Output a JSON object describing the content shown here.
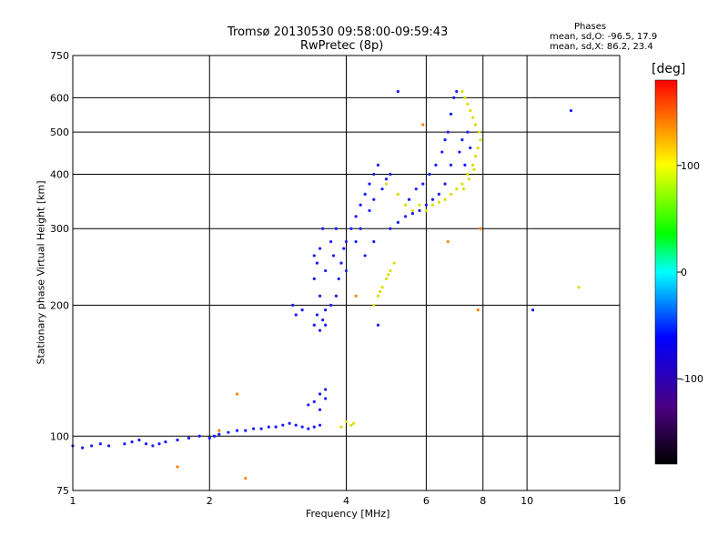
{
  "chart_data": {
    "type": "scatter",
    "title": "Tromsø 20130530 09:58:00-09:59:43",
    "subtitle": "RwPretec (8p)",
    "xlabel": "Frequency [MHz]",
    "ylabel": "Stationary phase Virtual Height [km]",
    "x_scale": "log",
    "y_scale": "log",
    "xlim": [
      1,
      16
    ],
    "ylim": [
      75,
      750
    ],
    "x_ticks": [
      1,
      2,
      4,
      6,
      8,
      10,
      16
    ],
    "y_ticks": [
      75,
      100,
      200,
      300,
      400,
      500,
      600,
      750
    ],
    "grid": true,
    "phase_stats": {
      "header": "Phases",
      "line_O": "mean, sd,O: -96.5, 17.9",
      "line_X": "mean, sd,X: 86.2, 23.4"
    },
    "colorbar": {
      "label": "[deg]",
      "range": [
        -180,
        180
      ],
      "ticks": [
        100,
        0,
        -100
      ],
      "colors": [
        "#000000",
        "#4b0082",
        "#0000ff",
        "#00ffff",
        "#00ff00",
        "#ffff00",
        "#ff0000"
      ]
    },
    "series": [
      {
        "phase": -96.5,
        "points": [
          [
            1.0,
            95
          ],
          [
            1.05,
            94
          ],
          [
            1.1,
            95
          ],
          [
            1.15,
            96
          ],
          [
            1.2,
            95
          ],
          [
            1.3,
            96
          ],
          [
            1.35,
            97
          ],
          [
            1.4,
            98
          ],
          [
            1.45,
            96
          ],
          [
            1.5,
            95
          ],
          [
            1.55,
            96
          ],
          [
            1.6,
            97
          ],
          [
            1.7,
            98
          ],
          [
            1.8,
            99
          ],
          [
            1.9,
            100
          ],
          [
            2.0,
            99
          ],
          [
            2.05,
            100
          ],
          [
            2.1,
            101
          ],
          [
            2.2,
            102
          ],
          [
            2.3,
            103
          ],
          [
            2.4,
            103
          ],
          [
            2.5,
            104
          ],
          [
            2.6,
            104
          ],
          [
            2.7,
            105
          ],
          [
            2.8,
            105
          ],
          [
            2.9,
            106
          ],
          [
            3.0,
            107
          ],
          [
            3.1,
            106
          ],
          [
            3.2,
            105
          ],
          [
            3.3,
            104
          ],
          [
            3.4,
            105
          ],
          [
            3.5,
            106
          ],
          [
            3.4,
            120
          ],
          [
            3.5,
            125
          ],
          [
            3.6,
            122
          ],
          [
            3.6,
            128
          ],
          [
            3.3,
            118
          ],
          [
            3.5,
            115
          ],
          [
            3.4,
            180
          ],
          [
            3.45,
            190
          ],
          [
            3.5,
            175
          ],
          [
            3.55,
            185
          ],
          [
            3.6,
            195
          ],
          [
            3.5,
            210
          ],
          [
            3.4,
            230
          ],
          [
            3.45,
            250
          ],
          [
            3.5,
            270
          ],
          [
            3.55,
            300
          ],
          [
            3.6,
            240
          ],
          [
            3.6,
            180
          ],
          [
            3.4,
            260
          ],
          [
            3.7,
            200
          ],
          [
            3.8,
            210
          ],
          [
            3.85,
            230
          ],
          [
            3.9,
            250
          ],
          [
            3.95,
            270
          ],
          [
            4.0,
            280
          ],
          [
            3.75,
            260
          ],
          [
            3.7,
            280
          ],
          [
            3.8,
            300
          ],
          [
            4.1,
            300
          ],
          [
            4.2,
            320
          ],
          [
            4.3,
            340
          ],
          [
            4.4,
            360
          ],
          [
            4.5,
            380
          ],
          [
            4.6,
            400
          ],
          [
            4.7,
            420
          ],
          [
            4.5,
            330
          ],
          [
            4.3,
            300
          ],
          [
            4.6,
            350
          ],
          [
            4.8,
            370
          ],
          [
            4.9,
            390
          ],
          [
            5.0,
            400
          ],
          [
            4.2,
            280
          ],
          [
            4.4,
            260
          ],
          [
            4.0,
            240
          ],
          [
            4.6,
            280
          ],
          [
            5.0,
            300
          ],
          [
            5.2,
            310
          ],
          [
            5.4,
            320
          ],
          [
            5.6,
            325
          ],
          [
            5.8,
            330
          ],
          [
            6.0,
            340
          ],
          [
            5.5,
            350
          ],
          [
            5.7,
            370
          ],
          [
            5.9,
            380
          ],
          [
            6.1,
            400
          ],
          [
            6.3,
            420
          ],
          [
            6.5,
            450
          ],
          [
            6.6,
            480
          ],
          [
            6.7,
            500
          ],
          [
            6.8,
            550
          ],
          [
            6.9,
            600
          ],
          [
            7.0,
            620
          ],
          [
            6.4,
            360
          ],
          [
            6.2,
            350
          ],
          [
            6.6,
            380
          ],
          [
            6.8,
            420
          ],
          [
            7.1,
            450
          ],
          [
            7.2,
            480
          ],
          [
            7.4,
            500
          ],
          [
            7.5,
            460
          ],
          [
            7.3,
            420
          ],
          [
            3.05,
            200
          ],
          [
            3.1,
            190
          ],
          [
            3.2,
            195
          ],
          [
            4.7,
            180
          ],
          [
            5.2,
            620
          ],
          [
            10.3,
            195
          ],
          [
            12.5,
            560
          ]
        ]
      },
      {
        "phase": 86.2,
        "points": [
          [
            3.9,
            105
          ],
          [
            4.0,
            108
          ],
          [
            4.1,
            106
          ],
          [
            4.15,
            107
          ],
          [
            4.6,
            200
          ],
          [
            4.7,
            210
          ],
          [
            4.8,
            220
          ],
          [
            4.9,
            230
          ],
          [
            5.0,
            240
          ],
          [
            5.1,
            250
          ],
          [
            4.75,
            215
          ],
          [
            4.95,
            235
          ],
          [
            5.6,
            330
          ],
          [
            5.8,
            340
          ],
          [
            6.0,
            330
          ],
          [
            6.2,
            340
          ],
          [
            6.4,
            345
          ],
          [
            6.6,
            350
          ],
          [
            6.8,
            360
          ],
          [
            7.0,
            370
          ],
          [
            7.2,
            380
          ],
          [
            7.4,
            400
          ],
          [
            7.6,
            420
          ],
          [
            7.7,
            440
          ],
          [
            7.8,
            460
          ],
          [
            7.9,
            480
          ],
          [
            7.85,
            500
          ],
          [
            7.7,
            520
          ],
          [
            7.6,
            540
          ],
          [
            7.5,
            560
          ],
          [
            7.4,
            580
          ],
          [
            7.3,
            600
          ],
          [
            7.2,
            620
          ],
          [
            7.45,
            390
          ],
          [
            7.65,
            410
          ],
          [
            7.25,
            370
          ],
          [
            4.9,
            380
          ],
          [
            5.2,
            360
          ],
          [
            5.4,
            340
          ],
          [
            13.0,
            220
          ]
        ]
      },
      {
        "phase": 175,
        "points": [
          [
            2.3,
            125
          ],
          [
            2.4,
            80
          ],
          [
            2.1,
            103
          ],
          [
            1.7,
            85
          ],
          [
            4.2,
            210
          ],
          [
            5.9,
            520
          ],
          [
            7.8,
            195
          ],
          [
            7.9,
            300
          ],
          [
            6.7,
            280
          ]
        ]
      }
    ]
  }
}
